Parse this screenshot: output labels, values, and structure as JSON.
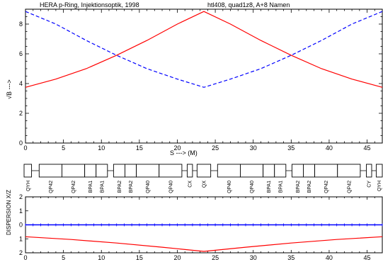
{
  "header": {
    "left": "HERA p-Ring, Injektionsoptik, 1998",
    "right": "htl408, quad1z8, A+8 Namen"
  },
  "chart_data": [
    {
      "type": "line",
      "title": "",
      "xlabel": "S ---> (M)",
      "ylabel": "√B --->",
      "xlim": [
        0,
        47
      ],
      "ylim": [
        0,
        9
      ],
      "xticks": [
        0,
        5,
        10,
        15,
        20,
        25,
        30,
        35,
        40,
        45
      ],
      "yticks": [
        0,
        2,
        4,
        6,
        8
      ],
      "series": [
        {
          "style": "solid",
          "color": "#ff0000",
          "x": [
            0,
            4,
            8,
            12,
            16,
            20,
            23.5,
            27,
            31,
            35,
            39,
            43,
            47
          ],
          "y": [
            3.75,
            4.3,
            5.0,
            5.9,
            6.9,
            8.0,
            8.85,
            8.0,
            6.9,
            5.9,
            5.0,
            4.3,
            3.75
          ]
        },
        {
          "style": "dashed",
          "color": "#0000ff",
          "x": [
            0,
            4,
            8,
            12,
            16,
            20,
            23.5,
            27,
            31,
            35,
            39,
            43,
            47
          ],
          "y": [
            8.85,
            8.0,
            6.9,
            5.9,
            5.0,
            4.3,
            3.75,
            4.3,
            5.0,
            5.9,
            6.9,
            8.0,
            8.85
          ]
        }
      ]
    },
    {
      "type": "table",
      "description_of_row": "magnet lattice",
      "elements": [
        {
          "label": "QYH",
          "start": -0.3,
          "end": 0.8
        },
        {
          "label": "QP42",
          "start": 1.8,
          "end": 4.8
        },
        {
          "label": "QP42",
          "start": 4.8,
          "end": 7.8
        },
        {
          "label": "BPA1",
          "start": 7.8,
          "end": 9.3
        },
        {
          "label": "BPA1",
          "start": 9.3,
          "end": 10.8
        },
        {
          "label": "BPA2",
          "start": 11.6,
          "end": 13.1
        },
        {
          "label": "BPA2",
          "start": 13.1,
          "end": 14.6
        },
        {
          "label": "QP40",
          "start": 14.6,
          "end": 17.6
        },
        {
          "label": "QP40",
          "start": 17.6,
          "end": 20.6
        },
        {
          "label": "CX",
          "start": 21.3,
          "end": 22.0
        },
        {
          "label": "QX",
          "start": 22.6,
          "end": 24.4
        },
        {
          "label": "QP40",
          "start": 25.3,
          "end": 28.3
        },
        {
          "label": "QP40",
          "start": 28.3,
          "end": 31.3
        },
        {
          "label": "BPA1",
          "start": 31.3,
          "end": 32.8
        },
        {
          "label": "BPA1",
          "start": 32.8,
          "end": 34.3
        },
        {
          "label": "BPA2",
          "start": 35.1,
          "end": 36.6
        },
        {
          "label": "BPA2",
          "start": 36.6,
          "end": 38.1
        },
        {
          "label": "QP42",
          "start": 38.1,
          "end": 41.1
        },
        {
          "label": "QP42",
          "start": 41.1,
          "end": 44.1
        },
        {
          "label": "CY",
          "start": 44.9,
          "end": 45.6
        },
        {
          "label": "QYH",
          "start": 46.2,
          "end": 47.3
        }
      ]
    },
    {
      "type": "line",
      "title": "",
      "xlabel": "",
      "ylabel": "DISPERSION X/Z",
      "xlim": [
        0,
        47
      ],
      "ylim": [
        -2,
        2
      ],
      "xticks": [
        0,
        5,
        10,
        15,
        20,
        25,
        30,
        35,
        40,
        45
      ],
      "yticks": [
        -2,
        -1,
        0,
        1,
        2
      ],
      "ytick_labels": [
        "2",
        "1",
        "0",
        "1",
        "2"
      ],
      "series": [
        {
          "style": "solid",
          "color": "#0000ff",
          "x": [
            0,
            47
          ],
          "y": [
            0,
            0
          ]
        },
        {
          "style": "solid",
          "color": "#ff0000",
          "x": [
            0,
            6,
            12,
            18,
            23.5,
            29,
            35,
            41,
            47
          ],
          "y": [
            -0.85,
            -1.05,
            -1.3,
            -1.6,
            -1.9,
            -1.6,
            -1.3,
            -1.05,
            -0.85
          ]
        }
      ]
    }
  ]
}
